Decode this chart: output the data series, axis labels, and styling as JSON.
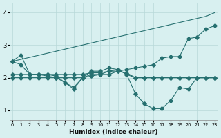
{
  "xlabel": "Humidex (Indice chaleur)",
  "x": [
    0,
    1,
    2,
    3,
    4,
    5,
    6,
    7,
    8,
    9,
    10,
    11,
    12,
    13,
    14,
    15,
    16,
    17,
    18,
    19,
    20,
    21,
    22,
    23
  ],
  "y_upper_line": [
    2.5,
    2.563,
    2.626,
    2.689,
    2.752,
    2.815,
    2.878,
    2.941,
    3.004,
    3.067,
    3.13,
    3.193,
    3.256,
    3.319,
    3.382,
    3.445,
    3.508,
    3.571,
    3.634,
    3.697,
    3.76,
    3.823,
    3.886,
    4.0
  ],
  "y_rising": [
    2.1,
    2.1,
    2.1,
    2.1,
    2.1,
    2.1,
    2.1,
    2.1,
    2.1,
    2.15,
    2.15,
    2.2,
    2.2,
    2.25,
    2.3,
    2.35,
    2.4,
    2.6,
    2.65,
    2.65,
    3.2,
    3.25,
    3.5,
    3.6
  ],
  "y_flat": [
    2.0,
    2.0,
    2.0,
    2.0,
    2.0,
    2.0,
    2.0,
    2.0,
    2.0,
    2.05,
    2.1,
    2.1,
    2.2,
    2.15,
    2.0,
    2.0,
    2.0,
    2.0,
    2.0,
    2.0,
    2.0,
    2.0,
    2.0,
    2.0
  ],
  "y_zigzag": [
    2.5,
    2.4,
    2.1,
    2.1,
    2.05,
    2.0,
    1.85,
    1.65,
    2.0,
    2.2,
    2.2,
    2.3,
    2.25,
    2.1,
    1.5,
    1.2,
    1.05,
    1.05,
    1.3,
    1.7,
    1.65,
    2.0,
    2.0,
    2.0
  ],
  "y_start_spike": [
    2.5,
    2.7,
    2.1,
    2.1,
    2.1,
    2.05,
    1.85,
    1.7,
    2.0,
    2.1,
    2.1,
    2.2,
    2.25,
    2.1,
    2.0,
    2.0,
    2.0,
    2.0,
    2.0,
    2.0,
    2.0,
    2.0,
    2.0,
    2.0
  ],
  "color": "#267070",
  "background_color": "#d8f0f0",
  "grid_color": "#b8d8d8",
  "ylim": [
    0.7,
    4.3
  ],
  "xlim": [
    -0.3,
    23.3
  ],
  "yticks": [
    1,
    2,
    3,
    4
  ],
  "figsize": [
    3.2,
    2.0
  ],
  "dpi": 100
}
